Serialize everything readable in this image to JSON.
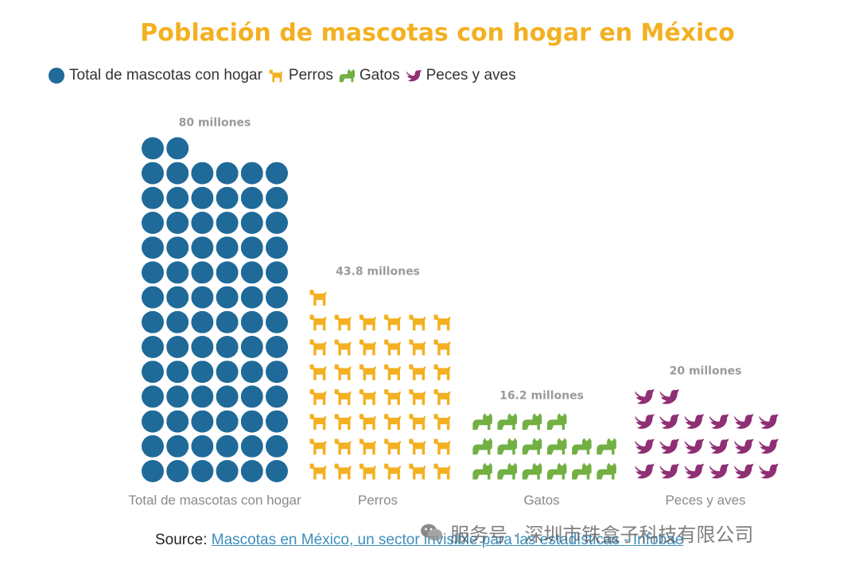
{
  "colors": {
    "title": "#f3b021",
    "total": "#1f6a99",
    "perros": "#f3b021",
    "gatos": "#72b043",
    "peces": "#8f2f74",
    "value_label": "#9a9a9a",
    "category_label": "#8a8a8a"
  },
  "legend": [
    {
      "label": "Total de mascotas con hogar",
      "icon": "circle-icon",
      "color": "#1f6a99"
    },
    {
      "label": "Perros",
      "icon": "dog-icon",
      "color": "#f3b021"
    },
    {
      "label": "Gatos",
      "icon": "cat-icon",
      "color": "#72b043"
    },
    {
      "label": "Peces y aves",
      "icon": "bird-icon",
      "color": "#8f2f74"
    }
  ],
  "chart_data": {
    "type": "bar",
    "title": "Población de mascotas con hogar en México",
    "categories": [
      "Total de mascotas con hogar",
      "Perros",
      "Gatos",
      "Peces y aves"
    ],
    "values": [
      80,
      43.8,
      16.2,
      20
    ],
    "value_labels": [
      "80 millones",
      "43.8 millones",
      "16.2 millones",
      "20 millones"
    ],
    "unit": "millones",
    "icons": [
      "circle-icon",
      "dog-icon",
      "cat-icon",
      "bird-icon"
    ],
    "icons_per_row": 6,
    "legend_position": "top-left"
  },
  "source": {
    "prefix": "Source: ",
    "link_text": "Mascotas en México, un sector invisible para las estadísticas - Infobae"
  },
  "watermark": {
    "text": "服务号 · 深圳市铁盒子科技有限公司",
    "icon": "wechat-icon"
  }
}
